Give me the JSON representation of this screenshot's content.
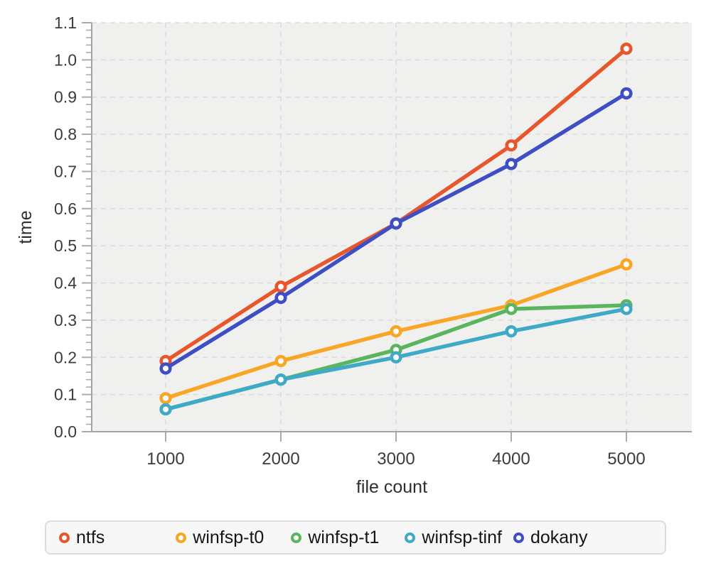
{
  "figure": {
    "background": "#ffffff",
    "plot_bg": "#f0f0ef",
    "grid_color": "#dcdcdc",
    "axis_color": "#a3a3a3",
    "tick_color": "#ababab",
    "tick_label_color": "#3c3c3c",
    "axis_title_color": "#2e2e2e"
  },
  "chart_data": {
    "type": "line",
    "x": [
      1000,
      2000,
      3000,
      4000,
      5000
    ],
    "x_tick_labels": [
      "1000",
      "2000",
      "3000",
      "4000",
      "5000"
    ],
    "y_tick_labels": [
      "0.0",
      "0.1",
      "0.2",
      "0.3",
      "0.4",
      "0.5",
      "0.6",
      "0.7",
      "0.8",
      "0.9",
      "1.0",
      "1.1"
    ],
    "series": [
      {
        "name": "ntfs",
        "color": "#E8562C",
        "values": [
          0.19,
          0.39,
          0.56,
          0.77,
          1.03
        ]
      },
      {
        "name": "winfsp-t0",
        "color": "#F9A526",
        "values": [
          0.09,
          0.19,
          0.27,
          0.34,
          0.45
        ]
      },
      {
        "name": "winfsp-t1",
        "color": "#5BB55E",
        "values": [
          0.06,
          0.14,
          0.22,
          0.33,
          0.34
        ]
      },
      {
        "name": "winfsp-tinf",
        "color": "#3FAAC7",
        "values": [
          0.06,
          0.14,
          0.2,
          0.27,
          0.33
        ]
      },
      {
        "name": "dokany",
        "color": "#3E4EC5",
        "values": [
          0.17,
          0.36,
          0.56,
          0.72,
          0.91
        ]
      }
    ],
    "title": "",
    "xlabel": "file count",
    "ylabel": "time",
    "xlim": [
      360,
      5570
    ],
    "ylim": [
      0.0,
      1.1
    ],
    "y_major_step": 0.1,
    "y_minor_step": 0.02,
    "grid": "dashed",
    "legend_position": "bottom",
    "marker": "open-circle"
  },
  "legend": {
    "items": [
      "ntfs",
      "winfsp-t0",
      "winfsp-t1",
      "winfsp-tinf",
      "dokany"
    ]
  }
}
